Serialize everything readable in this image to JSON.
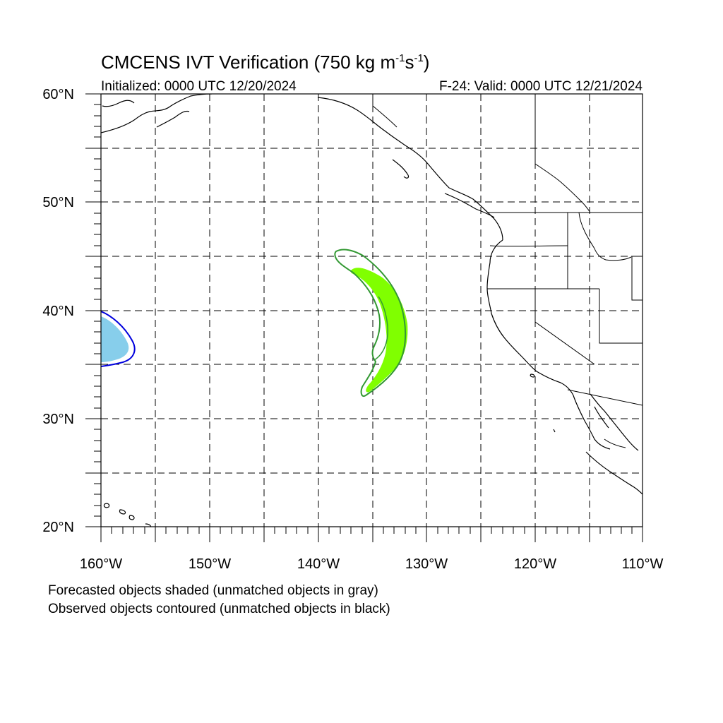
{
  "title": {
    "main": "CMCENS IVT Verification (750 kg m",
    "exp1": "-1",
    "mid": "s",
    "exp2": "-1",
    "close": ")"
  },
  "initialized": "Initialized: 0000 UTC 12/20/2024",
  "valid": "F-24: Valid: 0000 UTC 12/21/2024",
  "lat_labels": [
    "60°N",
    "50°N",
    "40°N",
    "30°N",
    "20°N"
  ],
  "lon_labels": [
    "160°W",
    "150°W",
    "140°W",
    "130°W",
    "120°W",
    "110°W"
  ],
  "notes": [
    "Forecasted objects shaded (unmatched objects in gray)",
    "Observed objects contoured (unmatched objects in black)"
  ],
  "map": {
    "extent": {
      "lon": [
        -160,
        -110
      ],
      "lat": [
        20,
        60
      ]
    },
    "grid_interval_deg": 5,
    "forecast_objects": [
      {
        "id": "forecast-object-west",
        "color": "#87ceeb",
        "lon_center": -158.8,
        "lat_center": 37.0
      },
      {
        "id": "forecast-object-central",
        "color": "#80ff00",
        "lon_center": -133.5,
        "lat_center": 37.5
      }
    ],
    "observed_objects": [
      {
        "id": "observed-object-west",
        "color": "#0000dd"
      },
      {
        "id": "observed-object-central",
        "color": "#339933"
      }
    ]
  }
}
